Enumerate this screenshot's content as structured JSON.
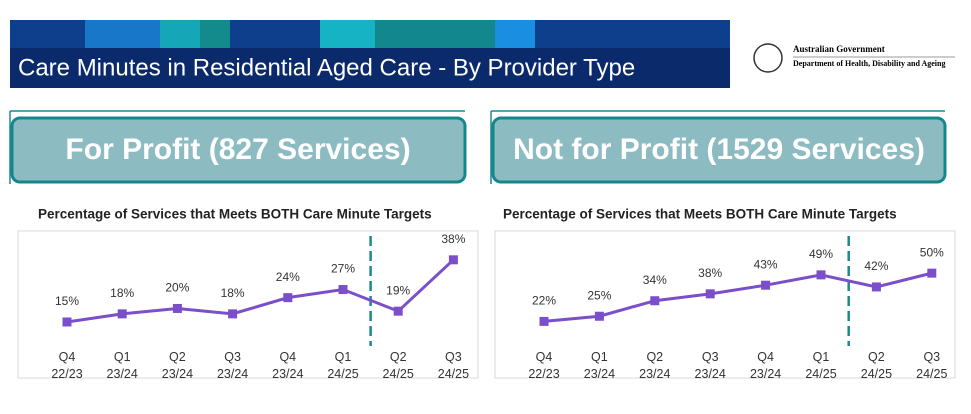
{
  "header": {
    "title": "Care Minutes in Residential Aged Care - By Provider Type",
    "gov_line1": "Australian Government",
    "gov_line2": "Department of Health, Disability and Ageing"
  },
  "chart_data": [
    {
      "type": "line",
      "panel_title": "For Profit (827 Services)",
      "title": "Percentage of Services that Meets BOTH Care Minute Targets",
      "categories": [
        "Q4 22/23",
        "Q1 23/24",
        "Q2 23/24",
        "Q3 23/24",
        "Q4 23/24",
        "Q1 24/25",
        "Q2 24/25",
        "Q3 24/25"
      ],
      "values": [
        15,
        18,
        20,
        18,
        24,
        27,
        19,
        38
      ],
      "value_labels": [
        "15%",
        "18%",
        "20%",
        "18%",
        "24%",
        "27%",
        "19%",
        "38%"
      ],
      "color": "#7b4fc9",
      "ylim": [
        5,
        42
      ]
    },
    {
      "type": "line",
      "panel_title": "Not for Profit (1529 Services)",
      "title": "Percentage of Services that Meets BOTH Care Minute Targets",
      "categories": [
        "Q4 22/23",
        "Q1 23/24",
        "Q2 23/24",
        "Q3 23/24",
        "Q4 23/24",
        "Q1 24/25",
        "Q2 24/25",
        "Q3 24/25"
      ],
      "values": [
        22,
        25,
        34,
        38,
        43,
        49,
        42,
        50
      ],
      "value_labels": [
        "22%",
        "25%",
        "34%",
        "38%",
        "43%",
        "49%",
        "42%",
        "50%"
      ],
      "color": "#7b4fc9",
      "ylim": [
        6,
        64
      ]
    }
  ]
}
